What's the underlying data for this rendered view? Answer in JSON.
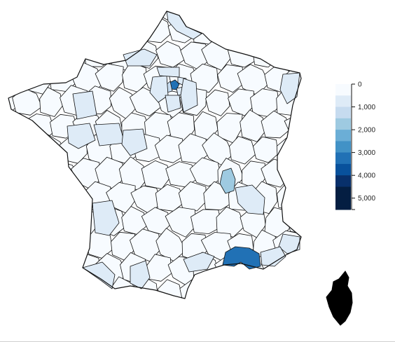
{
  "chart_data": {
    "type": "choropleth",
    "region": "France (départements)",
    "colorbar": {
      "ticks": [
        "0",
        "1,000",
        "2,000",
        "3,000",
        "4,000",
        "5,000"
      ],
      "tick_values": [
        0,
        1000,
        2000,
        3000,
        4000,
        5000
      ],
      "range": [
        0,
        5500
      ],
      "bins": [
        {
          "from": 0,
          "to": 500,
          "color": "#f7fbff"
        },
        {
          "from": 500,
          "to": 1000,
          "color": "#deebf7"
        },
        {
          "from": 1000,
          "to": 1500,
          "color": "#c6dbef"
        },
        {
          "from": 1500,
          "to": 2000,
          "color": "#9ecae1"
        },
        {
          "from": 2000,
          "to": 2500,
          "color": "#6baed6"
        },
        {
          "from": 2500,
          "to": 3000,
          "color": "#4292c6"
        },
        {
          "from": 3000,
          "to": 3500,
          "color": "#2171b5"
        },
        {
          "from": 3500,
          "to": 4000,
          "color": "#08519c"
        },
        {
          "from": 4000,
          "to": 4500,
          "color": "#08306b"
        },
        {
          "from": 4500,
          "to": 5500,
          "color": "#041e42"
        }
      ]
    },
    "regions": [
      {
        "id": "bouches-du-rhone",
        "value": 3000
      },
      {
        "id": "paris",
        "value": 3200
      },
      {
        "id": "hauts-de-seine",
        "value": 1200
      },
      {
        "id": "rhone",
        "value": 1800
      },
      {
        "id": "val-de-marne",
        "value": 900
      },
      {
        "id": "seine-saint-denis",
        "value": 900
      },
      {
        "id": "yvelines",
        "value": 700
      },
      {
        "id": "essonne",
        "value": 700
      },
      {
        "id": "seine-et-marne",
        "value": 600
      },
      {
        "id": "val-d-oise",
        "value": 600
      },
      {
        "id": "isere",
        "value": 800
      },
      {
        "id": "alpes-maritimes",
        "value": 900
      },
      {
        "id": "var",
        "value": 700
      },
      {
        "id": "herault",
        "value": 700
      },
      {
        "id": "haute-garonne",
        "value": 600
      },
      {
        "id": "gironde",
        "value": 700
      },
      {
        "id": "loire-atlantique",
        "value": 600
      },
      {
        "id": "ille-et-vilaine",
        "value": 600
      },
      {
        "id": "maine-et-loire",
        "value": 500
      },
      {
        "id": "bas-rhin",
        "value": 600
      },
      {
        "id": "nord",
        "value": 600
      },
      {
        "id": "seine-maritime",
        "value": 500
      },
      {
        "id": "indre-et-loire",
        "value": 500
      },
      {
        "id": "pyrenees-atlantiques",
        "value": 500
      }
    ],
    "default_value": 150,
    "colors": {
      "outline": "#111111",
      "corsica": "#000000"
    }
  }
}
